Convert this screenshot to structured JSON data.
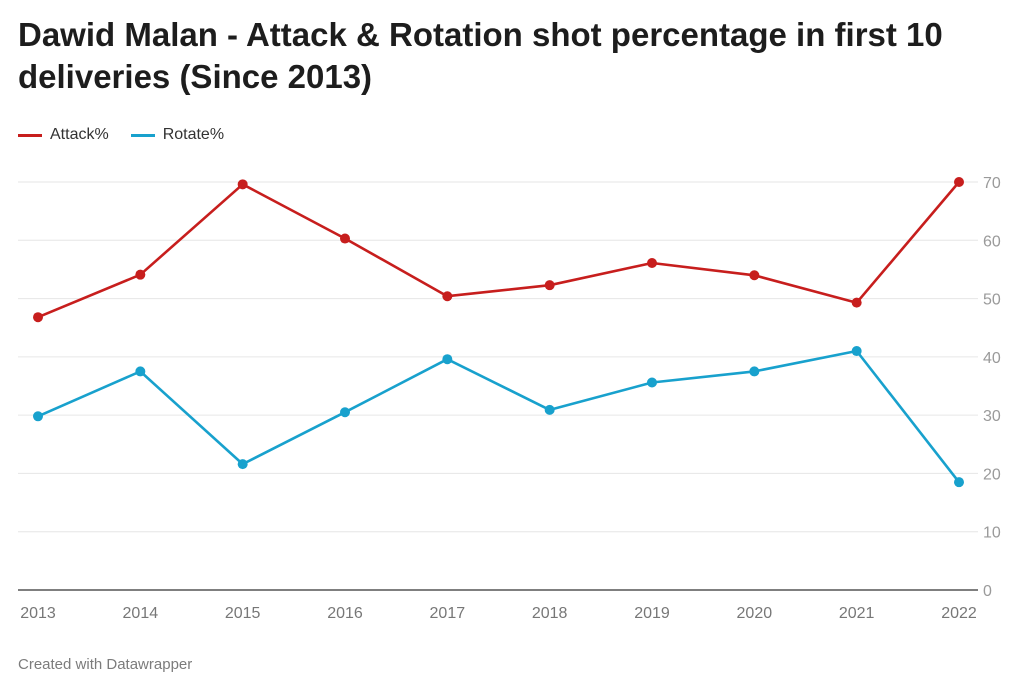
{
  "title": "Dawid Malan - Attack & Rotation shot percentage in first 10 deliveries (Since 2013)",
  "footer": "Created with Datawrapper",
  "chart_data": {
    "type": "line",
    "title": "Dawid Malan - Attack & Rotation shot percentage in first 10 deliveries (Since 2013)",
    "x": [
      "2013",
      "2014",
      "2015",
      "2016",
      "2017",
      "2018",
      "2019",
      "2020",
      "2021",
      "2022"
    ],
    "series": [
      {
        "name": "Attack%",
        "color": "#c71e1d",
        "values": [
          46.8,
          54.1,
          69.6,
          60.3,
          50.4,
          52.3,
          56.1,
          54.0,
          49.3,
          70.0
        ]
      },
      {
        "name": "Rotate%",
        "color": "#18a1cd",
        "values": [
          29.8,
          37.5,
          21.6,
          30.5,
          39.6,
          30.9,
          35.6,
          37.5,
          41.0,
          18.5
        ]
      }
    ],
    "yticks": [
      0,
      10,
      20,
      30,
      40,
      50,
      60,
      70
    ],
    "ylim": [
      0,
      70
    ],
    "grid": true,
    "legend_position": "top-left",
    "yaxis_side": "right"
  }
}
